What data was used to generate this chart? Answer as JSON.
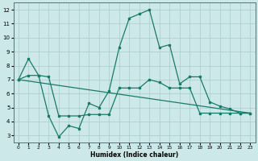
{
  "xlabel": "Humidex (Indice chaleur)",
  "bg_color": "#cce8e8",
  "grid_color": "#aacccc",
  "line_color": "#1a7a6a",
  "xlim": [
    -0.5,
    23.5
  ],
  "ylim": [
    2.5,
    12.5
  ],
  "yticks": [
    3,
    4,
    5,
    6,
    7,
    8,
    9,
    10,
    11,
    12
  ],
  "xticks": [
    0,
    1,
    2,
    3,
    4,
    5,
    6,
    7,
    8,
    9,
    10,
    11,
    12,
    13,
    14,
    15,
    16,
    17,
    18,
    19,
    20,
    21,
    22,
    23
  ],
  "line1_x": [
    0,
    1,
    2,
    3,
    4,
    5,
    6,
    7,
    8,
    9,
    10,
    11,
    12,
    13,
    14,
    15,
    16,
    17,
    18,
    19,
    20,
    21,
    22,
    23
  ],
  "line1_y": [
    7.0,
    8.5,
    7.3,
    4.4,
    2.9,
    3.7,
    3.5,
    5.3,
    5.0,
    6.2,
    9.3,
    11.4,
    11.7,
    12.0,
    9.3,
    9.5,
    6.7,
    7.2,
    7.2,
    5.4,
    5.1,
    4.9,
    4.6,
    4.6
  ],
  "line2_x": [
    0,
    1,
    2,
    3,
    4,
    5,
    6,
    7,
    8,
    9,
    10,
    11,
    12,
    13,
    14,
    15,
    16,
    17,
    18,
    19,
    20,
    21,
    22,
    23
  ],
  "line2_y": [
    7.0,
    7.3,
    7.3,
    7.2,
    4.4,
    4.4,
    4.4,
    4.5,
    4.5,
    4.5,
    6.4,
    6.4,
    6.4,
    7.0,
    6.8,
    6.4,
    6.4,
    6.4,
    4.6,
    4.6,
    4.6,
    4.6,
    4.6,
    4.6
  ],
  "line3_x": [
    0,
    23
  ],
  "line3_y": [
    7.0,
    4.6
  ],
  "marker_size": 2.0,
  "linewidth": 0.9
}
